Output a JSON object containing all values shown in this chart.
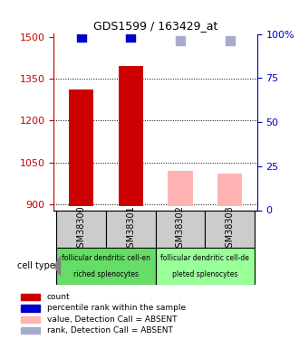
{
  "title": "GDS1599 / 163429_at",
  "samples": [
    "GSM38300",
    "GSM38301",
    "GSM38302",
    "GSM38303"
  ],
  "bar_values": [
    1310,
    1395,
    null,
    null
  ],
  "bar_colors_present": [
    "#cc0000",
    "#cc0000"
  ],
  "bar_values_absent": [
    null,
    null,
    1020,
    1010
  ],
  "bar_colors_absent": [
    "#ffb3b3",
    "#ffb3b3"
  ],
  "rank_present": [
    98,
    98,
    null,
    null
  ],
  "rank_absent": [
    null,
    null,
    96,
    96
  ],
  "ylim_left": [
    880,
    1510
  ],
  "ylim_right": [
    0,
    100
  ],
  "yticks_left": [
    900,
    1050,
    1200,
    1350,
    1500
  ],
  "yticks_right": [
    0,
    25,
    50,
    75,
    100
  ],
  "ytick_labels_right": [
    "0",
    "25",
    "50",
    "75",
    "100%"
  ],
  "left_axis_color": "#cc0000",
  "right_axis_color": "#0000cc",
  "cell_groups": [
    {
      "samples": [
        0,
        1
      ],
      "label1": "follicular dendritic cell-en",
      "label2": "riched splenocytes",
      "color": "#66dd66"
    },
    {
      "samples": [
        2,
        3
      ],
      "label1": "follicular dendritic cell-de",
      "label2": "pleted splenocytes",
      "color": "#99ff99"
    }
  ],
  "sample_box_color": "#cccccc",
  "legend_labels": [
    "count",
    "percentile rank within the sample",
    "value, Detection Call = ABSENT",
    "rank, Detection Call = ABSENT"
  ],
  "legend_colors": [
    "#cc0000",
    "#0000cc",
    "#ffb3b3",
    "#aaaacc"
  ],
  "bar_width": 0.5,
  "base_value": 895,
  "rank_dot_size": 50,
  "rank_present_color": "#0000cc",
  "rank_absent_color": "#aaaacc"
}
